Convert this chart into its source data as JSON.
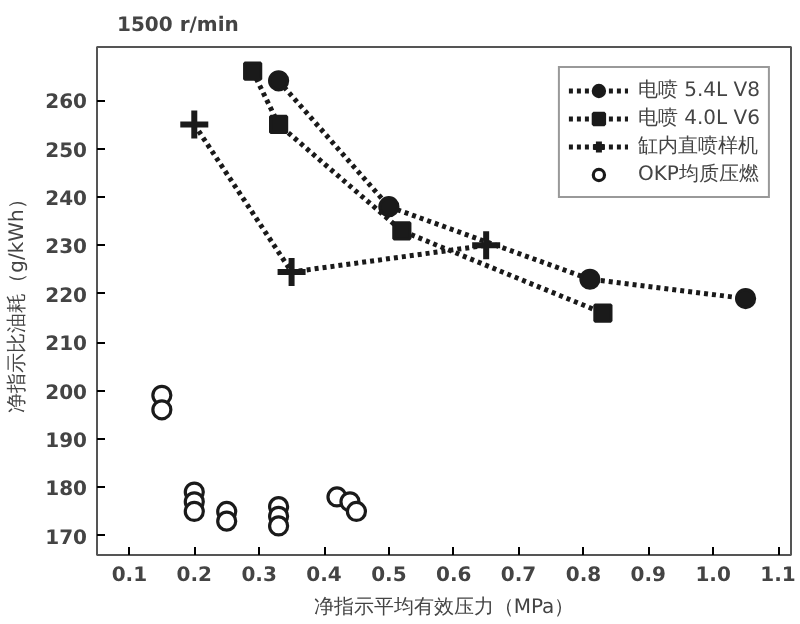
{
  "chart_data": {
    "type": "line",
    "title": "1500 r/min",
    "xlabel": "净指示平均有效压力（MPa）",
    "ylabel": "净指示比油耗（g/kWh）",
    "xlim": [
      0.05,
      1.12
    ],
    "ylim": [
      166,
      271
    ],
    "xticks": [
      {
        "value": 0.1,
        "label": "0.1"
      },
      {
        "value": 0.2,
        "label": "0.2"
      },
      {
        "value": 0.3,
        "label": "0.3"
      },
      {
        "value": 0.4,
        "label": "0.4"
      },
      {
        "value": 0.5,
        "label": "0.5"
      },
      {
        "value": 0.6,
        "label": "0.6"
      },
      {
        "value": 0.7,
        "label": "0.7"
      },
      {
        "value": 0.8,
        "label": "0.8"
      },
      {
        "value": 0.9,
        "label": "0.9"
      },
      {
        "value": 1.0,
        "label": "1.0"
      },
      {
        "value": 1.1,
        "label": "1.1"
      }
    ],
    "yticks": [
      170,
      180,
      190,
      200,
      210,
      220,
      230,
      240,
      250,
      260
    ],
    "legend": "top right",
    "grid": false,
    "line_style": "dotted",
    "series": [
      {
        "name": "电喷 5.4L V8",
        "color": "#1a1a1a",
        "marker": "circle",
        "x": [
          0.33,
          0.5,
          0.81,
          1.05
        ],
        "values": [
          264,
          238,
          223,
          219
        ]
      },
      {
        "name": "电喷 4.0L V6",
        "color": "#1a1a1a",
        "marker": "square",
        "x": [
          0.29,
          0.33,
          0.52,
          0.83
        ],
        "values": [
          266,
          255,
          233,
          216
        ]
      },
      {
        "name": "缸内直喷样机",
        "color": "#1a1a1a",
        "marker": "cross",
        "x": [
          0.2,
          0.35,
          0.65
        ],
        "values": [
          255,
          224.5,
          230
        ]
      },
      {
        "name": "OKP均质压燃",
        "type": "scatter",
        "color": "#1a1a1a",
        "marker": "circle",
        "x": [
          0.15,
          0.15,
          0.2,
          0.2,
          0.2,
          0.25,
          0.25,
          0.33,
          0.33,
          0.33,
          0.42,
          0.44,
          0.45
        ],
        "values": [
          199,
          196,
          179,
          177,
          175,
          175,
          173,
          176,
          174,
          172,
          178,
          177,
          175
        ]
      }
    ]
  }
}
